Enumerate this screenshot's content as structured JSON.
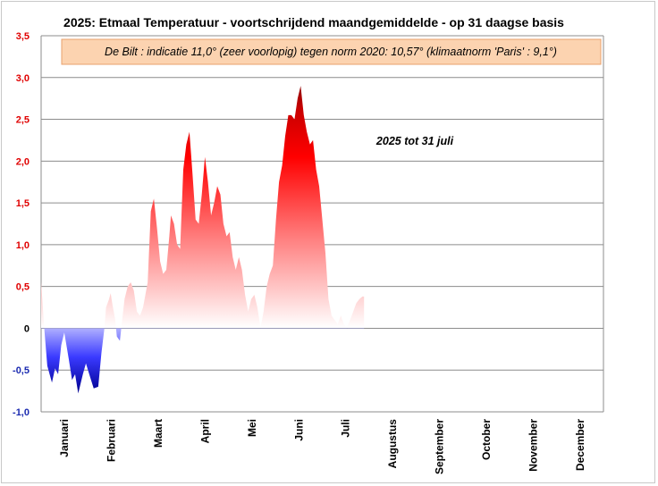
{
  "chart_data": {
    "type": "area",
    "title": "2025:  Etmaal Temperatuur - voortschrijdend maandgemiddelde - op 31 daagse basis",
    "note": "De Bilt : indicatie 11,0° (zeer voorlopig) tegen norm 2020: 10,57°  (klimaatnorm 'Paris' : 9,1°)",
    "annotation": "2025 tot 31 juli",
    "xlabel": "",
    "ylabel": "",
    "ylim": [
      -1.0,
      3.5
    ],
    "xlim": [
      1,
      365
    ],
    "grid": true,
    "legend": "none",
    "y_ticks": [
      {
        "value": 3.5,
        "label": "3,5"
      },
      {
        "value": 3.0,
        "label": "3,0"
      },
      {
        "value": 2.5,
        "label": "2,5"
      },
      {
        "value": 2.0,
        "label": "2,0"
      },
      {
        "value": 1.5,
        "label": "1,5"
      },
      {
        "value": 1.0,
        "label": "1,0"
      },
      {
        "value": 0.5,
        "label": "0,5"
      },
      {
        "value": 0.0,
        "label": "0"
      },
      {
        "value": -0.5,
        "label": "-0,5"
      },
      {
        "value": -1.0,
        "label": "-1,0"
      }
    ],
    "months": [
      "Januari",
      "Februari",
      "Maart",
      "April",
      "Mei",
      "Juni",
      "Juli",
      "Augustus",
      "September",
      "October",
      "November",
      "December"
    ],
    "series": [
      {
        "x": [
          1,
          3,
          5,
          8,
          10,
          12,
          14,
          16,
          19,
          21,
          23,
          25,
          28,
          30,
          33,
          35,
          38,
          40,
          42,
          43,
          45,
          46,
          47,
          49,
          50,
          52,
          55,
          57,
          59,
          61,
          63,
          65,
          67,
          70,
          72,
          74,
          76,
          78,
          80,
          82,
          84,
          85,
          87,
          89,
          91,
          93,
          95,
          97,
          99,
          101,
          103,
          105,
          107,
          109,
          111,
          113,
          115,
          117,
          119,
          121,
          123,
          125,
          127,
          129,
          131,
          133,
          135,
          137,
          139,
          141,
          143,
          145,
          147,
          149,
          151,
          153,
          155,
          157,
          159,
          161,
          163,
          165,
          167,
          169,
          171,
          173,
          175,
          177,
          179,
          181,
          183,
          185,
          187,
          189,
          191,
          193,
          195,
          197,
          199,
          201,
          203,
          205,
          207,
          209,
          210
        ],
        "values": [
          0.55,
          0.0,
          -0.45,
          -0.65,
          -0.48,
          -0.55,
          -0.2,
          -0.05,
          -0.38,
          -0.62,
          -0.55,
          -0.78,
          -0.55,
          -0.42,
          -0.6,
          -0.72,
          -0.7,
          -0.3,
          0.0,
          0.25,
          0.35,
          0.42,
          0.3,
          0.1,
          -0.1,
          -0.15,
          0.35,
          0.5,
          0.55,
          0.45,
          0.2,
          0.15,
          0.25,
          0.55,
          1.4,
          1.55,
          1.2,
          0.8,
          0.65,
          0.7,
          1.1,
          1.35,
          1.25,
          1.0,
          0.95,
          1.9,
          2.2,
          2.35,
          1.85,
          1.3,
          1.25,
          1.6,
          2.05,
          1.75,
          1.35,
          1.5,
          1.7,
          1.6,
          1.25,
          1.1,
          1.15,
          0.85,
          0.7,
          0.85,
          0.7,
          0.4,
          0.2,
          0.35,
          0.4,
          0.25,
          0.0,
          0.2,
          0.5,
          0.65,
          0.75,
          1.3,
          1.75,
          1.95,
          2.3,
          2.55,
          2.55,
          2.5,
          2.75,
          2.9,
          2.55,
          2.35,
          2.2,
          2.25,
          1.9,
          1.7,
          1.3,
          0.9,
          0.35,
          0.15,
          0.1,
          0.05,
          0.15,
          0.05,
          0.0,
          0.1,
          0.2,
          0.3,
          0.35,
          0.38,
          0.38
        ]
      }
    ]
  }
}
